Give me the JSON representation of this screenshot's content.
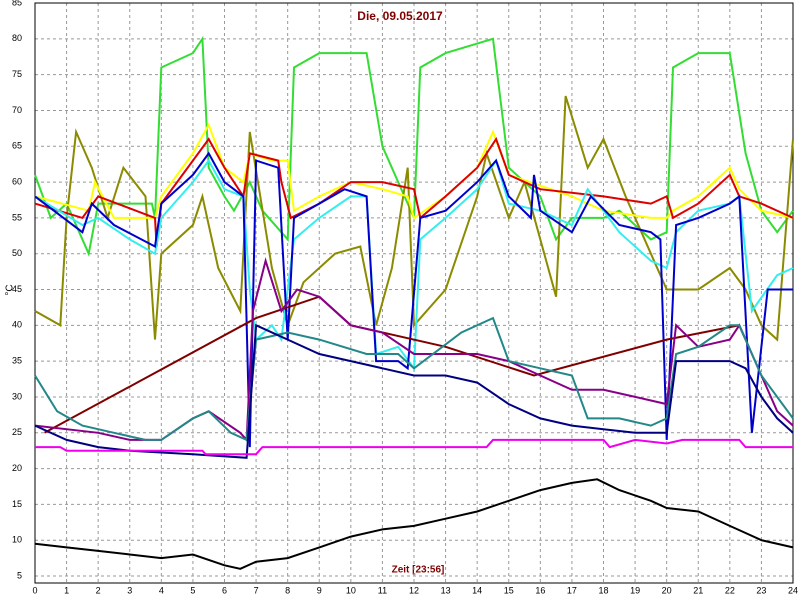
{
  "chart_data": {
    "type": "line",
    "title": "Die, 09.05.2017",
    "xlabel": "Zeit [23:56]",
    "ylabel": "°C",
    "xlim": [
      0,
      24
    ],
    "ylim": [
      5,
      85
    ],
    "xticks": [
      0,
      1,
      2,
      3,
      4,
      5,
      6,
      7,
      8,
      9,
      10,
      11,
      12,
      13,
      14,
      15,
      16,
      17,
      18,
      19,
      20,
      21,
      22,
      23,
      24
    ],
    "yticks": [
      5,
      10,
      15,
      20,
      25,
      30,
      35,
      40,
      45,
      50,
      55,
      60,
      65,
      70,
      75,
      80,
      85
    ],
    "grid": true,
    "series": [
      {
        "color": "#33dd33",
        "x": [
          0,
          0.5,
          1,
          1.7,
          2,
          3.7,
          3.8,
          4,
          5,
          5.3,
          5.5,
          6,
          6.3,
          6.8,
          7.2,
          8,
          8.2,
          9,
          10.5,
          11,
          12,
          12.2,
          13,
          14.5,
          15,
          16,
          16.5,
          17,
          18,
          18.5,
          19.5,
          20,
          20.2,
          21,
          22,
          22.5,
          23,
          23.5,
          24
        ],
        "values": [
          61,
          55,
          57,
          50,
          57,
          57,
          55,
          76,
          78,
          80,
          62,
          58,
          56,
          60,
          56,
          52,
          76,
          78,
          78,
          65,
          55,
          76,
          78,
          80,
          62,
          58,
          52,
          55,
          55,
          56,
          52,
          53,
          76,
          78,
          78,
          64,
          56,
          53,
          56
        ]
      },
      {
        "color": "#8b8b00",
        "x": [
          0,
          0.8,
          1,
          1.3,
          1.8,
          2.3,
          2.8,
          3.5,
          3.8,
          4,
          5,
          5.3,
          5.8,
          6.5,
          6.8,
          7.5,
          8,
          8.5,
          9.5,
          10.3,
          10.8,
          11.3,
          11.8,
          12,
          13,
          14,
          14.3,
          15,
          15.5,
          16,
          16.5,
          16.8,
          17.5,
          18,
          18.7,
          19.5,
          20,
          21,
          22,
          22.5,
          23,
          23.5,
          24
        ],
        "values": [
          42,
          40,
          55,
          67,
          62,
          55,
          62,
          58,
          38,
          50,
          54,
          58,
          48,
          42,
          67,
          48,
          40,
          46,
          50,
          51,
          40,
          48,
          62,
          40,
          45,
          58,
          64,
          55,
          60,
          52,
          44,
          72,
          62,
          66,
          58,
          50,
          45,
          45,
          48,
          45,
          40,
          38,
          66
        ]
      },
      {
        "color": "#ffff00",
        "x": [
          0,
          1.7,
          1.9,
          2.5,
          3.8,
          4,
          5,
          5.5,
          6,
          6.6,
          6.8,
          7.5,
          8,
          8.2,
          9,
          10,
          11,
          11.8,
          12,
          13,
          14,
          14.5,
          15,
          17,
          18,
          19.5,
          20,
          20.2,
          21,
          22,
          22.3,
          23,
          24
        ],
        "values": [
          58,
          56,
          60,
          55,
          55,
          58,
          64,
          68,
          62,
          60,
          64,
          63,
          63,
          56,
          58,
          60,
          59,
          58,
          55,
          58,
          62,
          67,
          61,
          58,
          56,
          55,
          55,
          56,
          58,
          62,
          59,
          56,
          55
        ]
      },
      {
        "color": "#dd0000",
        "x": [
          0,
          1.5,
          2,
          3.8,
          3.85,
          4,
          5,
          5.5,
          6,
          6.6,
          6.8,
          7.7,
          7.8,
          8.1,
          9,
          10,
          11,
          12,
          12.2,
          13,
          14,
          14.6,
          15,
          16,
          18,
          19.5,
          20,
          20.2,
          21,
          22,
          22.3,
          23,
          24
        ],
        "values": [
          57,
          55,
          58,
          55,
          51,
          57,
          63,
          66,
          62,
          58,
          64,
          63,
          60,
          55,
          57,
          60,
          60,
          59,
          55,
          58,
          62,
          66,
          61,
          59,
          58,
          57,
          58,
          55,
          57,
          61,
          58,
          57,
          55
        ]
      },
      {
        "color": "#33eeee",
        "x": [
          0,
          1.5,
          2,
          3,
          3.8,
          4,
          5,
          5.5,
          6,
          6.6,
          6.8,
          7,
          7.5,
          7.8,
          8.2,
          9,
          10,
          10.5,
          10.8,
          11.5,
          12,
          12.2,
          13,
          14,
          14.6,
          15,
          16,
          17,
          17.5,
          18.5,
          19.5,
          20,
          20.3,
          21,
          22,
          22.3,
          22.7,
          23.5,
          24
        ],
        "values": [
          58,
          54,
          55,
          52,
          50,
          55,
          60,
          63,
          59,
          58,
          45,
          38,
          40,
          38,
          52,
          55,
          58,
          58,
          36,
          37,
          34,
          52,
          55,
          59,
          63,
          57,
          56,
          54,
          59,
          53,
          49,
          48,
          53,
          56,
          57,
          58,
          42,
          47,
          48
        ]
      },
      {
        "color": "#0000cc",
        "x": [
          0,
          1.5,
          1.8,
          2.5,
          3.8,
          4,
          5,
          5.5,
          6,
          6.6,
          6.8,
          7,
          7.7,
          8,
          8.2,
          9,
          9.8,
          10.5,
          10.8,
          11.5,
          11.8,
          12.2,
          13,
          14,
          14.6,
          15,
          15.7,
          15.8,
          16,
          17,
          17.6,
          18.5,
          19.5,
          19.8,
          20,
          20.3,
          21,
          22,
          22.3,
          22.7,
          23.2,
          24
        ],
        "values": [
          58,
          53,
          57,
          54,
          51,
          57,
          61,
          64,
          60,
          58,
          23,
          63,
          62,
          38,
          55,
          57,
          59,
          58,
          35,
          35,
          34,
          55,
          56,
          60,
          63,
          58,
          55,
          61,
          56,
          53,
          58,
          54,
          53,
          52,
          24,
          54,
          55,
          57,
          58,
          25,
          45,
          45
        ]
      },
      {
        "color": "#800000",
        "x": [
          0.3,
          7,
          9,
          10,
          13,
          15.8,
          20,
          22.3,
          22.5
        ],
        "values": [
          25,
          41,
          44,
          40,
          37,
          33,
          38,
          40,
          38
        ]
      },
      {
        "color": "#880088",
        "x": [
          0,
          2,
          3,
          4,
          5,
          5.5,
          6.5,
          6.7,
          6.9,
          7.3,
          7.8,
          8.3,
          9,
          10,
          11,
          12,
          13,
          14,
          15,
          16,
          17,
          18,
          19,
          20,
          20.3,
          21,
          22,
          22.3,
          23,
          23.5,
          24
        ],
        "values": [
          26,
          25,
          24,
          24,
          27,
          28,
          25,
          24,
          42,
          49,
          42,
          45,
          44,
          40,
          39,
          36,
          36,
          36,
          35,
          33,
          31,
          31,
          30,
          29,
          40,
          37,
          38,
          40,
          33,
          28,
          26
        ]
      },
      {
        "color": "#228888",
        "x": [
          0,
          0.7,
          1.5,
          2.5,
          3.5,
          4,
          5,
          5.5,
          6.2,
          6.7,
          7,
          8,
          9,
          10.5,
          11.5,
          12,
          13.5,
          14.5,
          15,
          16,
          17,
          17.5,
          18.5,
          19.5,
          20,
          20.3,
          21,
          22,
          22.3,
          23,
          24
        ],
        "values": [
          33,
          28,
          26,
          25,
          24,
          24,
          27,
          28,
          25,
          24,
          38,
          39,
          38,
          36,
          36,
          34,
          39,
          41,
          35,
          34,
          33,
          27,
          27,
          26,
          27,
          36,
          37,
          40,
          40,
          33,
          27
        ]
      },
      {
        "color": "#000080",
        "x": [
          0,
          1,
          2,
          3,
          5,
          6.7,
          7,
          8,
          9,
          10,
          11,
          12,
          13,
          14,
          15,
          16,
          17,
          18,
          19,
          20,
          20.3,
          21,
          22,
          22.5,
          23,
          23.5,
          24
        ],
        "values": [
          26,
          24,
          23,
          22.5,
          22,
          21.5,
          40,
          38,
          36,
          35,
          34,
          33,
          33,
          32,
          29,
          27,
          26,
          25.5,
          25,
          25,
          35,
          35,
          35,
          34,
          30,
          27,
          25
        ]
      },
      {
        "color": "#ee00ee",
        "x": [
          0,
          0.8,
          1,
          5.3,
          5.4,
          7,
          7.2,
          14.3,
          14.5,
          18,
          18.2,
          19,
          20,
          20.5,
          22.3,
          22.5,
          24
        ],
        "values": [
          23,
          23,
          22.5,
          22.5,
          22,
          22,
          23,
          23,
          24,
          24,
          23,
          24,
          23.5,
          24,
          24,
          23,
          23
        ]
      },
      {
        "color": "#000000",
        "x": [
          0,
          1,
          2,
          3,
          4,
          5,
          6,
          6.5,
          7,
          8,
          9,
          10,
          11,
          12,
          13,
          14,
          15,
          16,
          17,
          17.8,
          18.5,
          19.5,
          20,
          21,
          22,
          22.5,
          23,
          24
        ],
        "values": [
          9.5,
          9,
          8.5,
          8,
          7.5,
          8,
          6.5,
          6,
          7,
          7.5,
          9,
          10.5,
          11.5,
          12,
          13,
          14,
          15.5,
          17,
          18,
          18.5,
          17,
          15.5,
          14.5,
          14,
          12,
          11,
          10,
          9
        ]
      }
    ]
  }
}
